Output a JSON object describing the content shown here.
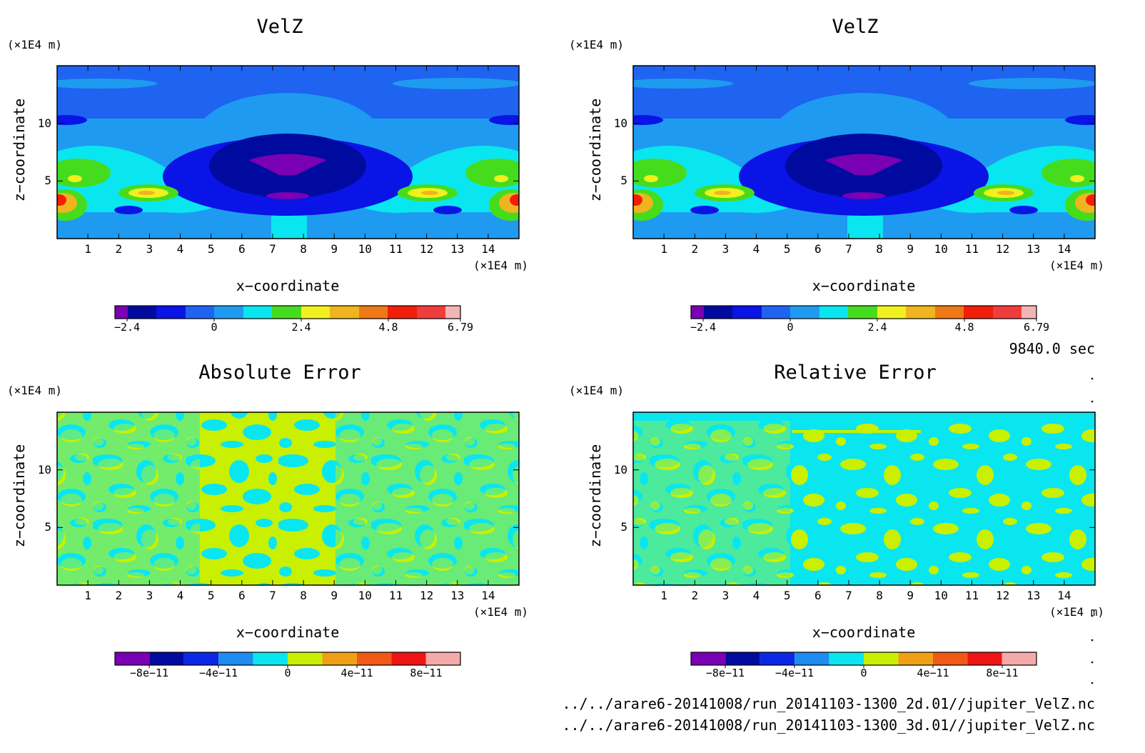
{
  "figure": {
    "time_label": "9840.0 sec",
    "files": [
      "../../arare6-20141008/run_20141103-1300_2d.01//jupiter_VelZ.nc",
      "../../arare6-20141008/run_20141103-1300_3d.01//jupiter_VelZ.nc"
    ]
  },
  "colors": {
    "velz_palette": [
      "#7a00b4",
      "#000a9e",
      "#0a14e6",
      "#1e64f0",
      "#1e9bf0",
      "#0ae6f0",
      "#46dc1e",
      "#f0f01e",
      "#f0b41e",
      "#f07814",
      "#f01e0a",
      "#f03c3c",
      "#f5b4b4"
    ],
    "error_palette": [
      "#7a00b4",
      "#000a9e",
      "#0a28e6",
      "#1e8cf0",
      "#0ae6f0",
      "#c8f000",
      "#f0a014",
      "#f05a14",
      "#f01414",
      "#f5aaaa"
    ]
  },
  "chart_data": [
    {
      "type": "heatmap",
      "title": "VelZ",
      "xlabel": "x−coordinate",
      "ylabel": "z−coordinate",
      "x_unit": "(×1E4 m)",
      "y_unit": "(×1E4 m)",
      "xlim": [
        0,
        15
      ],
      "ylim": [
        0,
        15
      ],
      "x_ticks": [
        "1",
        "2",
        "3",
        "4",
        "5",
        "6",
        "7",
        "8",
        "9",
        "10",
        "11",
        "12",
        "13",
        "14"
      ],
      "y_ticks": [
        "5",
        "10"
      ],
      "colorbar": {
        "labels": [
          "−2.4",
          "0",
          "2.4",
          "4.8",
          "6.79"
        ],
        "min": -2.79,
        "max": 6.79
      },
      "features": [
        {
          "x": 7.5,
          "y": 6.3,
          "value": -2.6
        },
        {
          "x": 7.5,
          "y": 3.4,
          "value": -2.0
        },
        {
          "x": 0.1,
          "y": 2.8,
          "value": 6.5
        },
        {
          "x": 14.9,
          "y": 2.8,
          "value": 6.5
        },
        {
          "x": 2.9,
          "y": 3.6,
          "value": 3.6
        },
        {
          "x": 12.1,
          "y": 3.6,
          "value": 3.6
        },
        {
          "x": 0.5,
          "y": 5.2,
          "value": 2.4
        },
        {
          "x": 14.5,
          "y": 5.2,
          "value": 2.4
        }
      ]
    },
    {
      "type": "heatmap",
      "title": "VelZ",
      "xlabel": "x−coordinate",
      "ylabel": "z−coordinate",
      "x_unit": "(×1E4 m)",
      "y_unit": "(×1E4 m)",
      "xlim": [
        0,
        15
      ],
      "ylim": [
        0,
        15
      ],
      "x_ticks": [
        "1",
        "2",
        "3",
        "4",
        "5",
        "6",
        "7",
        "8",
        "9",
        "10",
        "11",
        "12",
        "13",
        "14"
      ],
      "y_ticks": [
        "5",
        "10"
      ],
      "colorbar": {
        "labels": [
          "−2.4",
          "0",
          "2.4",
          "4.8",
          "6.79"
        ],
        "min": -2.79,
        "max": 6.79
      },
      "features": [
        {
          "x": 7.5,
          "y": 6.3,
          "value": -2.6
        },
        {
          "x": 7.5,
          "y": 3.4,
          "value": -2.0
        },
        {
          "x": 0.1,
          "y": 2.8,
          "value": 6.5
        },
        {
          "x": 14.9,
          "y": 2.8,
          "value": 6.5
        },
        {
          "x": 2.9,
          "y": 3.6,
          "value": 3.6
        },
        {
          "x": 12.1,
          "y": 3.6,
          "value": 3.6
        },
        {
          "x": 0.5,
          "y": 5.2,
          "value": 2.4
        },
        {
          "x": 14.5,
          "y": 5.2,
          "value": 2.4
        }
      ]
    },
    {
      "type": "heatmap",
      "title": "Absolute Error",
      "xlabel": "x−coordinate",
      "ylabel": "z−coordinate",
      "x_unit": "(×1E4 m)",
      "y_unit": "(×1E4 m)",
      "xlim": [
        0,
        15
      ],
      "ylim": [
        0,
        15
      ],
      "x_ticks": [
        "1",
        "2",
        "3",
        "4",
        "5",
        "6",
        "7",
        "8",
        "9",
        "10",
        "11",
        "12",
        "13",
        "14"
      ],
      "y_ticks": [
        "5",
        "10"
      ],
      "colorbar": {
        "labels": [
          "−8e−11",
          "−4e−11",
          "0",
          "4e−11",
          "8e−11"
        ],
        "min": -1e-10,
        "max": 1e-10
      },
      "field": "noise_near_zero",
      "values_present": [
        "-2e-11..0",
        "0..2e-11"
      ]
    },
    {
      "type": "heatmap",
      "title": "Relative Error",
      "xlabel": "x−coordinate",
      "ylabel": "z−coordinate",
      "x_unit": "(×1E4 m)",
      "y_unit": "(×1E4 m)",
      "xlim": [
        0,
        15
      ],
      "ylim": [
        0,
        15
      ],
      "x_ticks": [
        "1",
        "2",
        "3",
        "4",
        "5",
        "6",
        "7",
        "8",
        "9",
        "10",
        "11",
        "12",
        "13",
        "14"
      ],
      "y_ticks": [
        "5",
        "10"
      ],
      "colorbar": {
        "labels": [
          "−8e−11",
          "−4e−11",
          "0",
          "4e−11",
          "8e−11"
        ],
        "min": -1e-10,
        "max": 1e-10
      },
      "field": "noise_near_zero",
      "values_present": [
        "-2e-11..0",
        "0..2e-11"
      ]
    }
  ]
}
